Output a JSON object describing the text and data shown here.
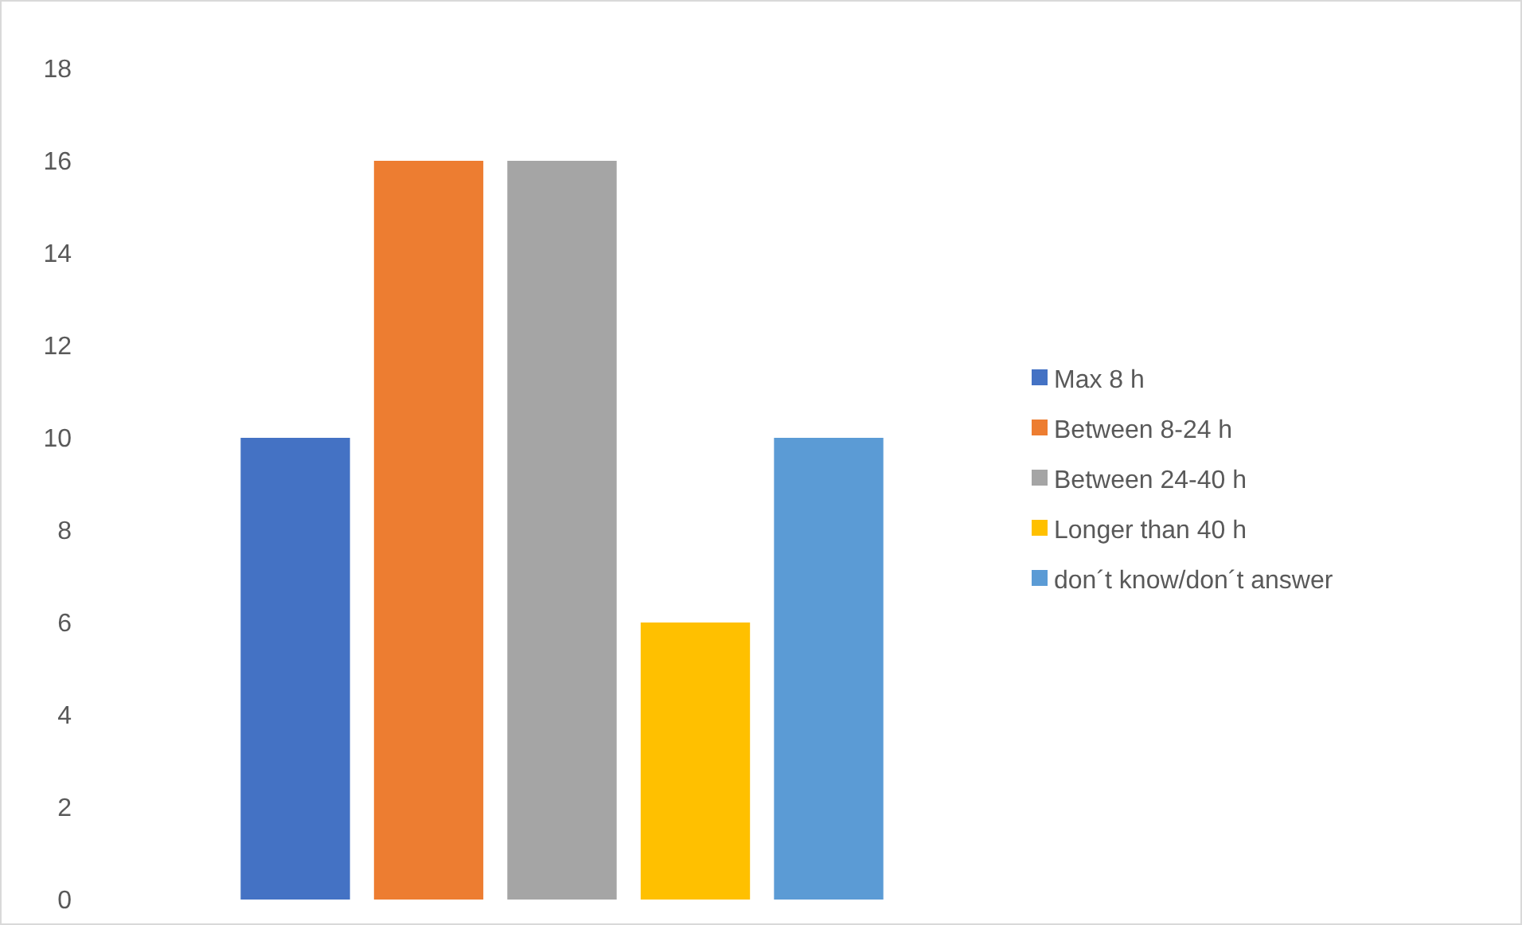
{
  "chart_data": {
    "type": "bar",
    "categories": [
      null
    ],
    "series": [
      {
        "name": "Max 8 h",
        "color": "#4472c4",
        "values": [
          10
        ]
      },
      {
        "name": "Between 8-24 h",
        "color": "#ed7d31",
        "values": [
          16
        ]
      },
      {
        "name": "Between 24-40 h",
        "color": "#a5a5a5",
        "values": [
          16
        ]
      },
      {
        "name": "Longer than 40 h",
        "color": "#ffc000",
        "values": [
          6
        ]
      },
      {
        "name": "don´t know/don´t answer",
        "color": "#5b9bd5",
        "values": [
          10
        ]
      }
    ],
    "ylim": [
      0,
      18
    ],
    "yticks": [
      0,
      2,
      4,
      6,
      8,
      10,
      12,
      14,
      16,
      18
    ],
    "grid": false,
    "legend": "right"
  }
}
